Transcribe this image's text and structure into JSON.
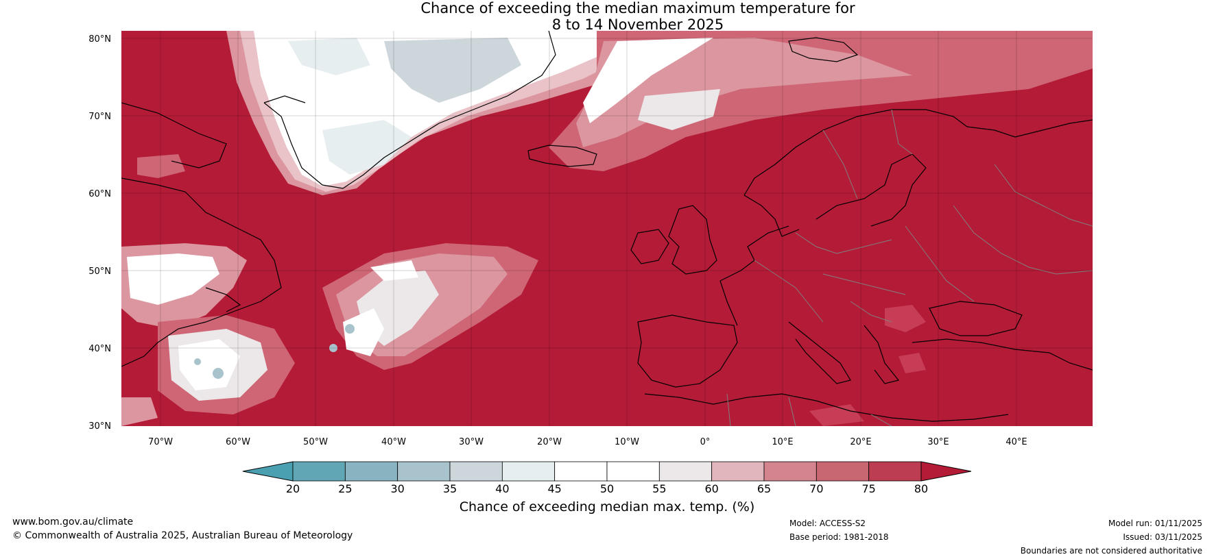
{
  "title": {
    "line1": "Chance of exceeding the median maximum temperature for",
    "line2": "8 to 14 November 2025"
  },
  "map": {
    "lat_labels": [
      "80°N",
      "70°N",
      "60°N",
      "50°N",
      "40°N",
      "30°N"
    ],
    "lon_labels": [
      "70°W",
      "60°W",
      "50°W",
      "40°W",
      "30°W",
      "20°W",
      "10°W",
      "0°",
      "10°E",
      "20°E",
      "30°E",
      "40°E"
    ],
    "colors": {
      "dominant": "#b31b36",
      "p75": "#c63d55",
      "p70": "#cf6676",
      "p65": "#dc96a0",
      "p60": "#e9c3c7",
      "p55": "#ece8e9",
      "p50": "#ffffff",
      "p40": "#e7eef0",
      "p35": "#cdd7db",
      "p30": "#a9c3cc",
      "coast": "#000000",
      "border": "#808080"
    }
  },
  "colorbar": {
    "title": "Chance of exceeding median max. temp. (%)",
    "ticks": [
      "20",
      "25",
      "30",
      "35",
      "40",
      "45",
      "50",
      "55",
      "60",
      "65",
      "70",
      "75",
      "80"
    ],
    "bins": [
      {
        "from": "20",
        "to": "25",
        "color": "#61a6b5"
      },
      {
        "from": "25",
        "to": "30",
        "color": "#89b3c1"
      },
      {
        "from": "30",
        "to": "35",
        "color": "#a9c3cc"
      },
      {
        "from": "35",
        "to": "40",
        "color": "#cdd7db"
      },
      {
        "from": "40",
        "to": "45",
        "color": "#e7eef0"
      },
      {
        "from": "45",
        "to": "50",
        "color": "#ffffff"
      },
      {
        "from": "50",
        "to": "55",
        "color": "#ffffff"
      },
      {
        "from": "55",
        "to": "60",
        "color": "#ece8e9"
      },
      {
        "from": "60",
        "to": "65",
        "color": "#e1b7bd"
      },
      {
        "from": "65",
        "to": "70",
        "color": "#d3848f"
      },
      {
        "from": "70",
        "to": "75",
        "color": "#c86672"
      },
      {
        "from": "75",
        "to": "80",
        "color": "#bc3d51"
      }
    ],
    "under_color": "#4a9fb0",
    "over_color": "#b31b36"
  },
  "footer": {
    "website": "www.bom.gov.au/climate",
    "copyright": "© Commonwealth of Australia 2025, Australian Bureau of Meteorology",
    "model": "Model: ACCESS-S2",
    "base_period": "Base period: 1981-2018",
    "model_run": "Model run: 01/11/2025",
    "issued": "Issued: 03/11/2025",
    "disclaimer": "Boundaries are not considered authoritative"
  }
}
